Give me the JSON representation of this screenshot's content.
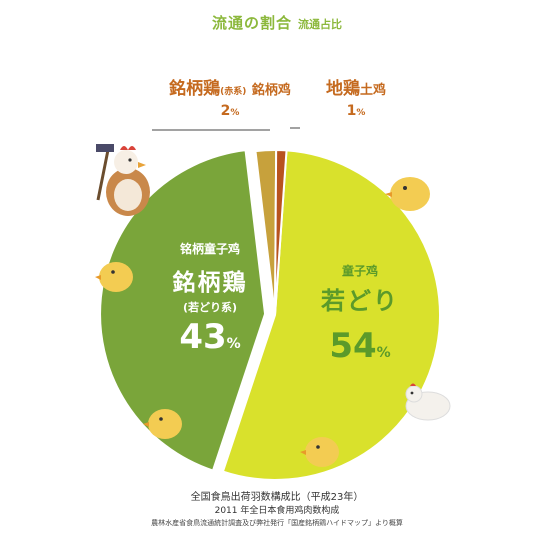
{
  "header": {
    "title_jp": "流通の割合",
    "title_cn": "流通占比"
  },
  "labels": {
    "brand_red": {
      "name_jp": "銘柄鶏",
      "paren": "(赤系)",
      "name_cn": "銘柄鸡",
      "pct": "2",
      "pct_unit": "%"
    },
    "local": {
      "name_jp": "地鶏",
      "name_cn": "土鸡",
      "pct": "1",
      "pct_unit": "%"
    },
    "brand": {
      "sub_cn": "铭柄童子鸡",
      "name_jp": "銘柄鶏",
      "paren": "(若どり系)",
      "pct": "43",
      "pct_unit": "%"
    },
    "young": {
      "sub_cn": "童子鸡",
      "name_jp": "若どり",
      "pct": "54",
      "pct_unit": "%"
    }
  },
  "footer": {
    "line1": "全国食鳥出荷羽数構成比（平成23年）",
    "line2": "2011 年全日本食用鸡肉数构成",
    "line3": "農林水産省食鳥流通統計調査及び弊社発行「国産銘柄鶏ハイドマップ」より概算"
  },
  "chart_data": {
    "type": "pie",
    "title": "流通の割合",
    "slices": [
      {
        "label": "若どり",
        "value": 54,
        "color": "#d9e12c"
      },
      {
        "label": "銘柄鶏（若どり系）",
        "value": 43,
        "color": "#7aa53a"
      },
      {
        "label": "銘柄鶏（赤系）",
        "value": 2,
        "color": "#c7a13c"
      },
      {
        "label": "地鶏",
        "value": 1,
        "color": "#b8531f"
      }
    ]
  }
}
